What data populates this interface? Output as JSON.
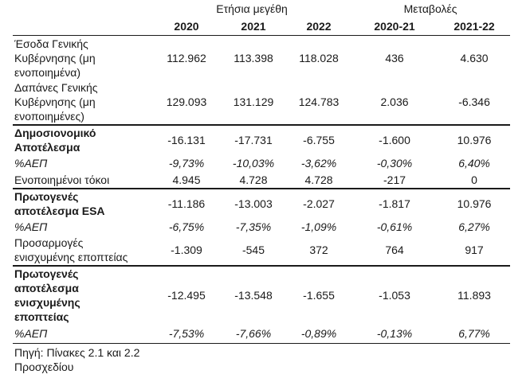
{
  "header": {
    "group_annual": "Ετήσια μεγέθη",
    "group_change": "Μεταβολές",
    "years": [
      "2020",
      "2021",
      "2022",
      "2020-21",
      "2021-22"
    ]
  },
  "rows": [
    {
      "label_lines": [
        "Έσοδα Γενικής",
        "Κυβέρνησης (μη",
        "ενοποιημένα)"
      ],
      "values": [
        "112.962",
        "113.398",
        "118.028",
        "436",
        "4.630"
      ]
    },
    {
      "label_lines": [
        "Δαπάνες Γενικής",
        "Κυβέρνησης (μη",
        "ενοποιημένες)"
      ],
      "values": [
        "129.093",
        "131.129",
        "124.783",
        "2.036",
        "-6.346"
      ]
    },
    {
      "label_lines": [
        "Δημοσιονομικό",
        "Αποτέλεσμα"
      ],
      "values": [
        "-16.131",
        "-17.731",
        "-6.755",
        "-1.600",
        "10.976"
      ]
    },
    {
      "label_lines": [
        "%ΑΕΠ"
      ],
      "values": [
        "-9,73%",
        "-10,03%",
        "-3,62%",
        "-0,30%",
        "6,40%"
      ]
    },
    {
      "label_lines": [
        "Ενοποιημένοι τόκοι"
      ],
      "values": [
        "4.945",
        "4.728",
        "4.728",
        "-217",
        "0"
      ]
    },
    {
      "label_lines": [
        "Πρωτογενές",
        "αποτέλεσμα ESA"
      ],
      "values": [
        "-11.186",
        "-13.003",
        "-2.027",
        "-1.817",
        "10.976"
      ]
    },
    {
      "label_lines": [
        "%ΑΕΠ"
      ],
      "values": [
        "-6,75%",
        "-7,35%",
        "-1,09%",
        "-0,61%",
        "6,27%"
      ]
    },
    {
      "label_lines": [
        "Προσαρμογές",
        "ενισχυμένης εποπτείας"
      ],
      "values": [
        "-1.309",
        "-545",
        "372",
        "764",
        "917"
      ]
    },
    {
      "label_lines": [
        "Πρωτογενές",
        "αποτέλεσμα",
        "ενισχυμένης",
        "εποπτείας"
      ],
      "values": [
        "-12.495",
        "-13.548",
        "-1.655",
        "-1.053",
        "11.893"
      ]
    },
    {
      "label_lines": [
        "%ΑΕΠ"
      ],
      "values": [
        "-7,53%",
        "-7,66%",
        "-0,89%",
        "-0,13%",
        "6,77%"
      ]
    }
  ],
  "source": {
    "lines": [
      "Πηγή: Πίνακες 2.1 και 2.2",
      "Προσχεδίου"
    ]
  }
}
